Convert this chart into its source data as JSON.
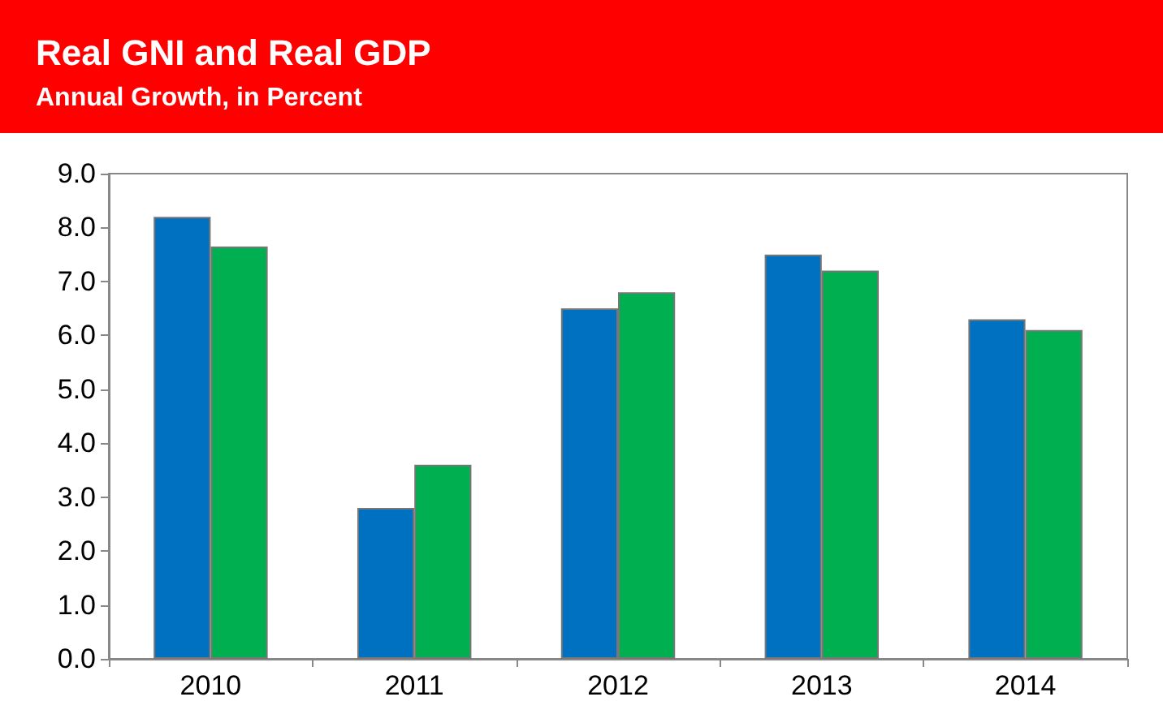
{
  "chart_data": {
    "type": "bar",
    "title": "Real GNI and Real GDP",
    "subtitle": "Annual Growth, in Percent",
    "categories": [
      "2010",
      "2011",
      "2012",
      "2013",
      "2014"
    ],
    "series": [
      {
        "color": "#0070c0",
        "values": [
          8.2,
          2.8,
          6.5,
          7.5,
          6.3
        ]
      },
      {
        "color": "#00b050",
        "values": [
          7.65,
          3.6,
          6.8,
          7.2,
          6.1
        ]
      }
    ],
    "ylim": [
      0,
      9
    ],
    "yticks": [
      {
        "value": 0,
        "label": "0.0"
      },
      {
        "value": 1,
        "label": "1.0"
      },
      {
        "value": 2,
        "label": "2.0"
      },
      {
        "value": 3,
        "label": "3.0"
      },
      {
        "value": 4,
        "label": "4.0"
      },
      {
        "value": 5,
        "label": "5.0"
      },
      {
        "value": 6,
        "label": "6.0"
      },
      {
        "value": 7,
        "label": "7.0"
      },
      {
        "value": 8,
        "label": "8.0"
      },
      {
        "value": 9,
        "label": "9.0"
      }
    ],
    "grid": false
  }
}
